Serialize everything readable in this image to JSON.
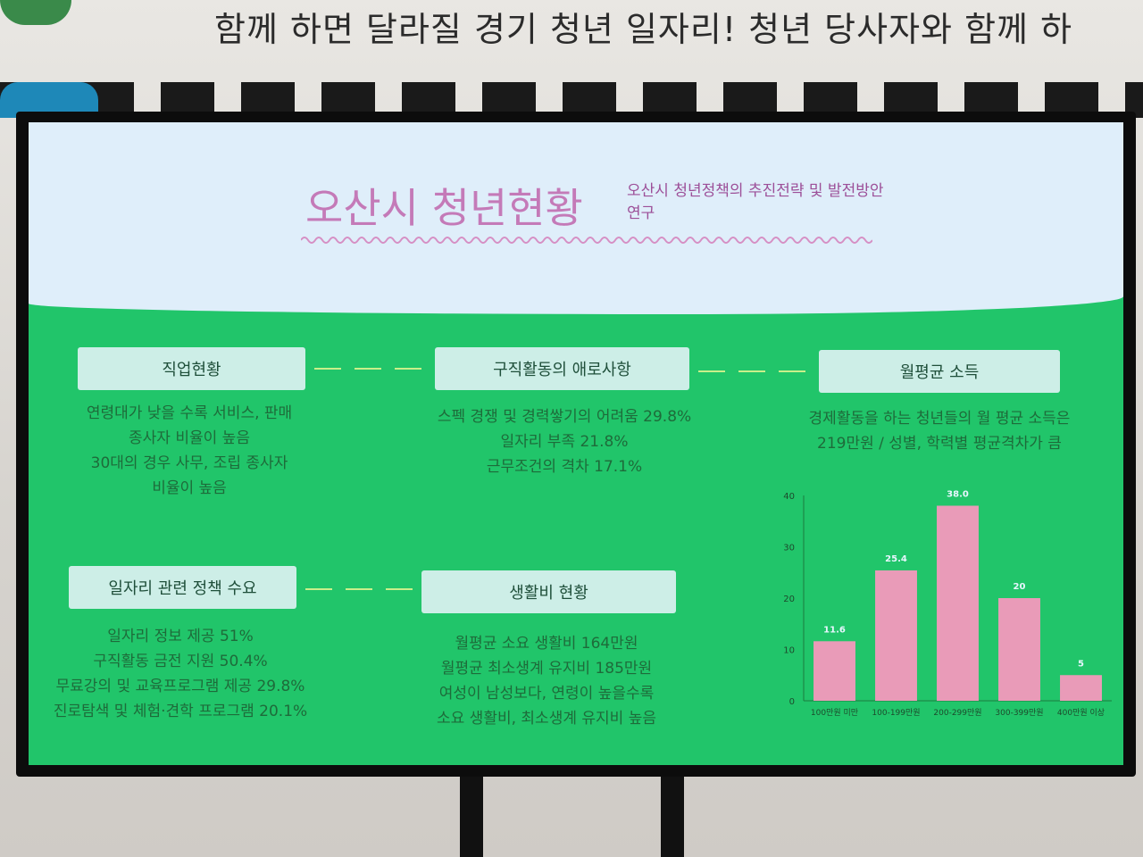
{
  "background": {
    "banner_text": "함께 하면 달라질 경기 청년 일자리! 청년 당사자와 함께 하"
  },
  "slide": {
    "title": "오산시 청년현황",
    "subtitle": "오산시 청년정책의 추진전략 및 발전방안 연구",
    "sections": [
      {
        "label": "직업현황",
        "lines": [
          "연령대가 낮을 수록 서비스, 판매",
          "종사자 비율이 높음",
          "30대의 경우 사무, 조립 종사자",
          "비율이 높음"
        ]
      },
      {
        "label": "구직활동의 애로사항",
        "lines": [
          "스펙 경쟁 및 경력쌓기의 어려움 29.8%",
          "일자리 부족 21.8%",
          "근무조건의 격차 17.1%"
        ]
      },
      {
        "label": "월평균 소득",
        "lines": [
          "경제활동을 하는 청년들의 월 평균 소득은",
          "219만원 / 성별, 학력별 평균격차가 큼"
        ]
      },
      {
        "label": "일자리 관련 정책 수요",
        "lines": [
          "일자리 정보 제공 51%",
          "구직활동 금전 지원 50.4%",
          "무료강의 및 교육프로그램 제공 29.8%",
          "진로탐색 및 체험·견학 프로그램 20.1%"
        ]
      },
      {
        "label": "생활비 현황",
        "lines": [
          "월평균 소요 생활비 164만원",
          "월평균 최소생계 유지비 185만원",
          "여성이 남성보다, 연령이 높을수록",
          "소요 생활비, 최소생계 유지비 높음"
        ]
      }
    ]
  },
  "colors": {
    "bar": "#e99bb8",
    "slide_green": "#21c56a",
    "title": "#c47ab8"
  },
  "chart_data": {
    "type": "bar",
    "categories": [
      "100만원 미만",
      "100-199만원",
      "200-299만원",
      "300-399만원",
      "400만원 이상"
    ],
    "values": [
      11.6,
      25.4,
      38.0,
      20,
      5
    ],
    "data_labels": [
      "11.6",
      "25.4",
      "38.0",
      "20",
      "5"
    ],
    "yticks": [
      "0",
      "10",
      "20",
      "30",
      "40"
    ],
    "ylim": [
      0,
      40
    ],
    "grid": false
  }
}
